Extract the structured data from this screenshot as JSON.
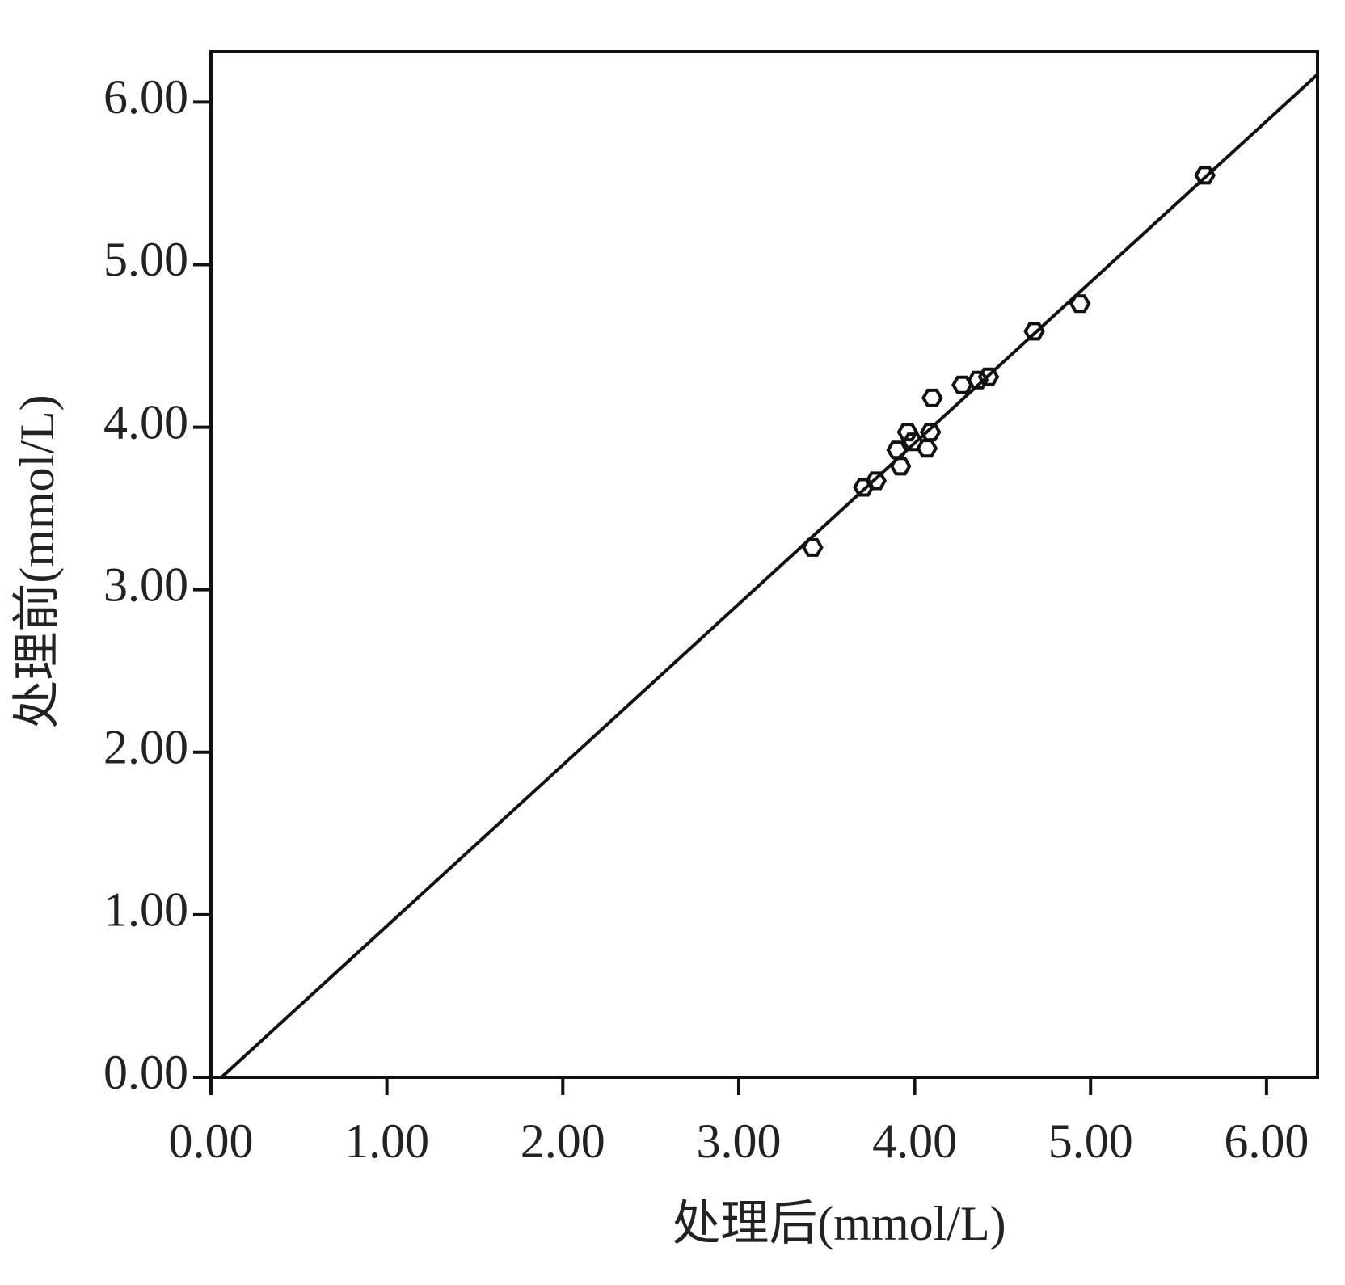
{
  "chart_data": {
    "type": "scatter",
    "x_label": "处理后(mmol/L)",
    "y_label": "处理前(mmol/L)",
    "xlim": [
      0,
      6.29
    ],
    "ylim": [
      0,
      6.31
    ],
    "xticks": [
      {
        "value": 0,
        "label": "0.00"
      },
      {
        "value": 1,
        "label": "1.00"
      },
      {
        "value": 2,
        "label": "2.00"
      },
      {
        "value": 3,
        "label": "3.00"
      },
      {
        "value": 4,
        "label": "4.00"
      },
      {
        "value": 5,
        "label": "5.00"
      },
      {
        "value": 6,
        "label": "6.00"
      }
    ],
    "yticks": [
      {
        "value": 0,
        "label": "0.00"
      },
      {
        "value": 1,
        "label": "1.00"
      },
      {
        "value": 2,
        "label": "2.00"
      },
      {
        "value": 3,
        "label": "3.00"
      },
      {
        "value": 4,
        "label": "4.00"
      },
      {
        "value": 5,
        "label": "5.00"
      },
      {
        "value": 6,
        "label": "6.00"
      }
    ],
    "color": "#111111",
    "x": [
      3.42,
      3.71,
      3.78,
      3.92,
      3.9,
      3.96,
      3.99,
      4.07,
      4.09,
      4.1,
      4.27,
      4.36,
      4.42,
      4.68,
      4.94,
      5.65
    ],
    "values": [
      3.26,
      3.63,
      3.67,
      3.76,
      3.86,
      3.97,
      3.91,
      3.87,
      3.97,
      4.18,
      4.26,
      4.29,
      4.31,
      4.59,
      4.76,
      5.55
    ],
    "fit_line": {
      "x": [
        0.06,
        6.29
      ],
      "y": [
        0,
        6.17
      ]
    }
  }
}
